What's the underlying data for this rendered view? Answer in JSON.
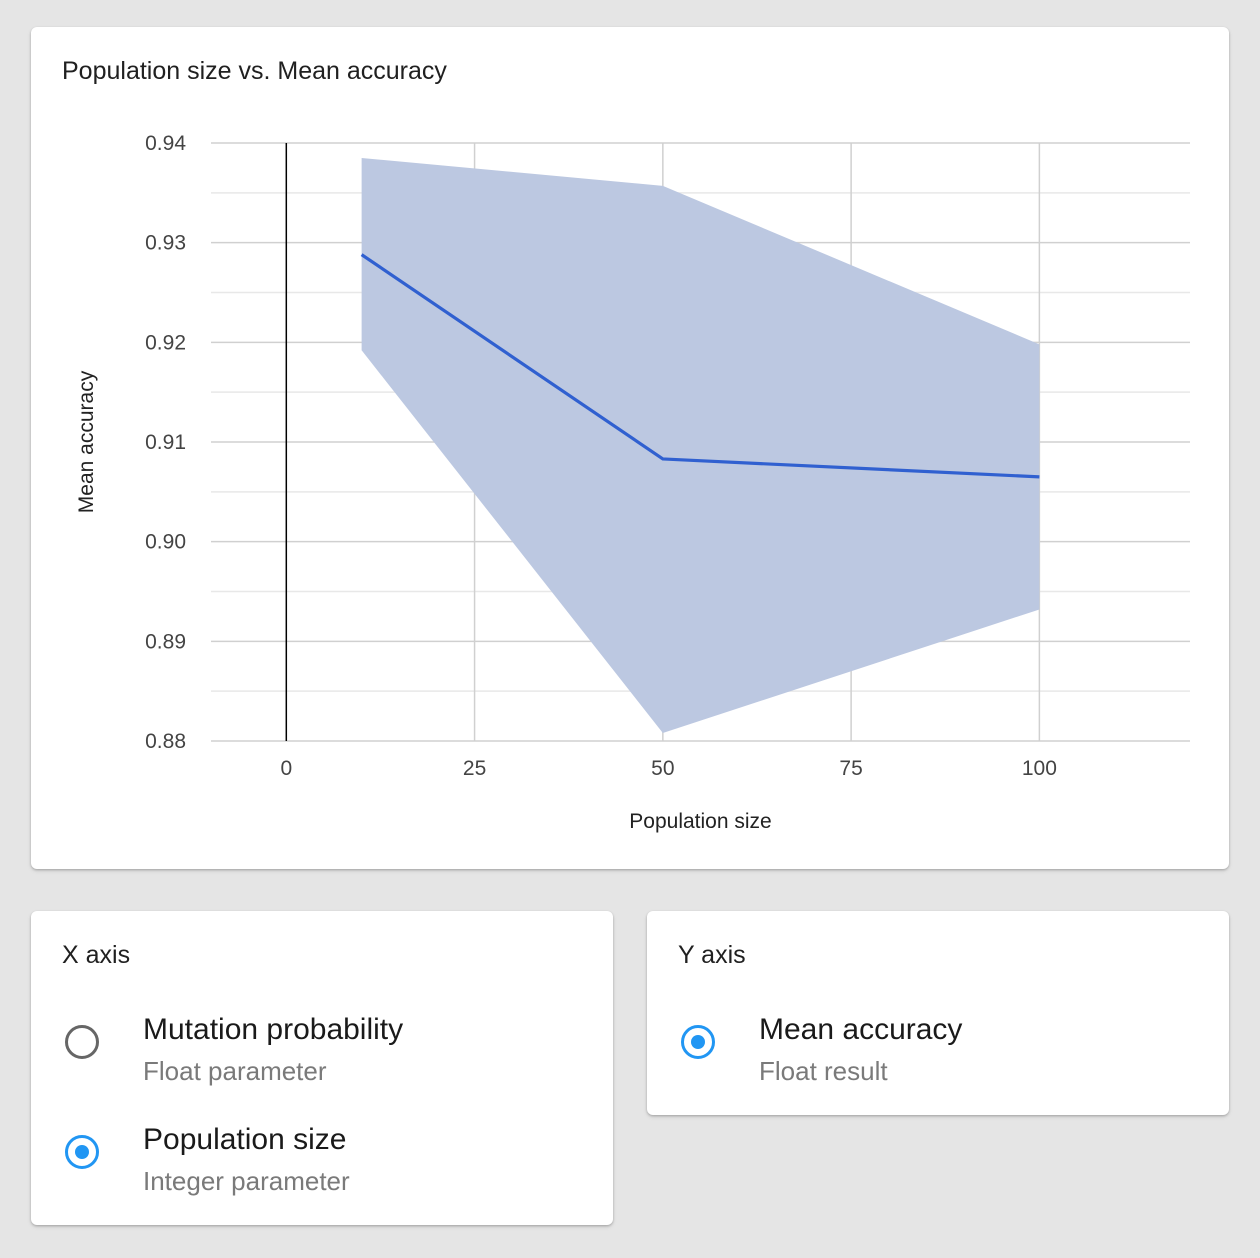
{
  "chart_card": {
    "title": "Population size vs. Mean accuracy"
  },
  "chart_data": {
    "type": "line",
    "title": "Population size vs. Mean accuracy",
    "xlabel": "Population size",
    "ylabel": "Mean accuracy",
    "xlim": [
      -10,
      120
    ],
    "ylim": [
      0.88,
      0.94
    ],
    "x_ticks": [
      "0",
      "25",
      "50",
      "75",
      "100"
    ],
    "x_tick_values": [
      0,
      25,
      50,
      75,
      100
    ],
    "y_ticks": [
      "0.88",
      "0.89",
      "0.90",
      "0.91",
      "0.92",
      "0.93",
      "0.94"
    ],
    "y_tick_values": [
      0.88,
      0.89,
      0.9,
      0.91,
      0.92,
      0.93,
      0.94
    ],
    "grid": true,
    "series": [
      {
        "x": [
          10,
          50,
          100
        ],
        "mean": [
          0.9288,
          0.9083,
          0.9065
        ],
        "lower": [
          0.9192,
          0.8808,
          0.8932
        ],
        "upper": [
          0.9385,
          0.9357,
          0.9198
        ]
      }
    ],
    "colors": {
      "line": "#3060d0",
      "band": "#bcc8e1",
      "grid_major": "#d0d0d0",
      "grid_minor": "#e8e8e8",
      "zero_line": "#000000"
    }
  },
  "x_axis_card": {
    "title": "X axis",
    "options": [
      {
        "label": "Mutation probability",
        "sublabel": "Float parameter",
        "selected": false
      },
      {
        "label": "Population size",
        "sublabel": "Integer parameter",
        "selected": true
      }
    ]
  },
  "y_axis_card": {
    "title": "Y axis",
    "options": [
      {
        "label": "Mean accuracy",
        "sublabel": "Float result",
        "selected": true
      }
    ]
  },
  "accent_color": "#2196f3"
}
